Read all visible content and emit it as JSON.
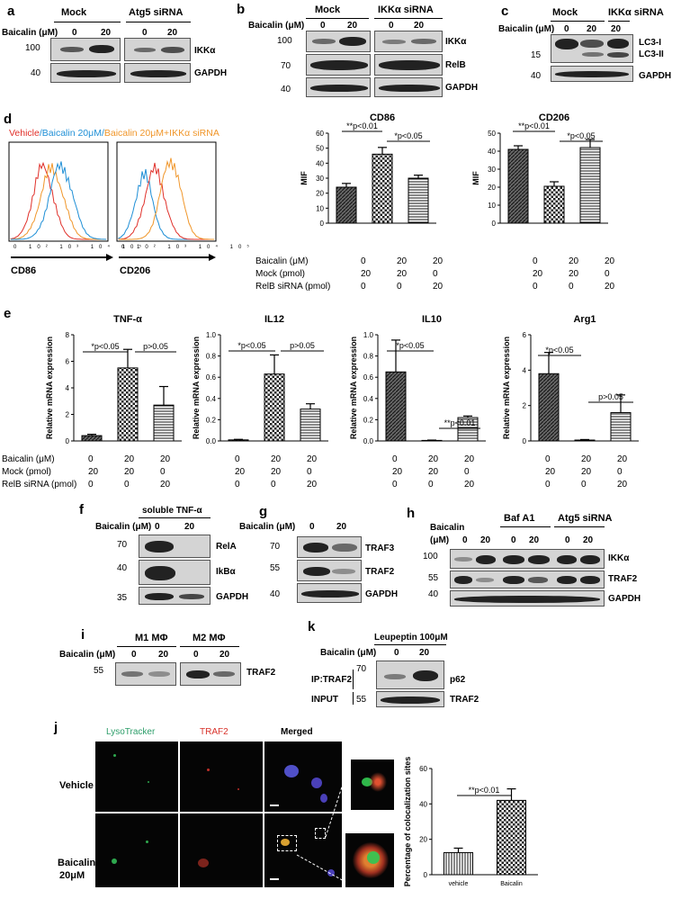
{
  "panels": {
    "a": {
      "label": "a",
      "treat_label": "Baicalin (μM)",
      "groups": [
        "Mock",
        "Atg5 siRNA"
      ],
      "doses": [
        "0",
        "20",
        "0",
        "20"
      ],
      "mw": [
        "100",
        "40"
      ],
      "proteins": [
        "IKKα",
        "GAPDH"
      ]
    },
    "b": {
      "label": "b",
      "treat_label": "Baicalin (μM)",
      "groups": [
        "Mock",
        "IKKα siRNA"
      ],
      "doses": [
        "0",
        "20",
        "0",
        "20"
      ],
      "mw": [
        "100",
        "70",
        "40"
      ],
      "proteins": [
        "IKKα",
        "RelB",
        "GAPDH"
      ]
    },
    "c": {
      "label": "c",
      "treat_label": "Baicalin (μM)",
      "groups": [
        "Mock",
        "IKKα siRNA"
      ],
      "doses": [
        "0",
        "20",
        "20"
      ],
      "mw": [
        "15",
        "40"
      ],
      "proteins": [
        "LC3-I",
        "LC3-II",
        "GAPDH"
      ]
    },
    "d": {
      "label": "d",
      "legend": [
        "Vehicle",
        "/Baicalin 20μM/",
        "Baicalin 20μM+IKKα siRNA"
      ],
      "legend_colors": [
        "#e0302a",
        "#1f8fd6",
        "#f0962a"
      ],
      "flow_xlabels": [
        "CD86",
        "CD206"
      ],
      "ticks": [
        "0",
        "10²",
        "10³",
        "10⁴",
        "10⁵"
      ]
    },
    "e": {
      "label": "e"
    },
    "f": {
      "label": "f",
      "title": "soluble TNF-α",
      "treat_label": "Baicalin (μM)",
      "doses": [
        "0",
        "20"
      ],
      "mw": [
        "70",
        "40",
        "35"
      ],
      "proteins": [
        "RelA",
        "IkBα",
        "GAPDH"
      ]
    },
    "g": {
      "label": "g",
      "treat_label": "Baicalin (μM)",
      "doses": [
        "0",
        "20"
      ],
      "mw": [
        "70",
        "55",
        "40"
      ],
      "proteins": [
        "TRAF3",
        "TRAF2",
        "GAPDH"
      ]
    },
    "h": {
      "label": "h",
      "treat_label_1": "Baicalin",
      "treat_label_2": "(μM)",
      "groups": [
        "Baf A1",
        "Atg5 siRNA"
      ],
      "doses": [
        "0",
        "20",
        "0",
        "20",
        "0",
        "20"
      ],
      "mw": [
        "100",
        "55",
        "40"
      ],
      "proteins": [
        "IKKα",
        "TRAF2",
        "GAPDH"
      ]
    },
    "i": {
      "label": "i",
      "groups": [
        "M1 MΦ",
        "M2 MΦ"
      ],
      "treat_label": "Baicalin (μM)",
      "doses": [
        "0",
        "20",
        "0",
        "20"
      ],
      "mw": [
        "55"
      ],
      "proteins": [
        "TRAF2"
      ]
    },
    "k": {
      "label": "k",
      "title": "Leupeptin 100μM",
      "treat_label": "Baicalin (μM)",
      "doses": [
        "0",
        "20"
      ],
      "mw": [
        "70",
        "55"
      ],
      "rows": [
        "IP:TRAF2",
        "INPUT"
      ],
      "proteins": [
        "p62",
        "TRAF2"
      ]
    },
    "j": {
      "label": "j",
      "channels": [
        "LysoTracker",
        "TRAF2",
        "Merged"
      ],
      "channel_colors": [
        "#2e9e6a",
        "#d8322a",
        "#000000"
      ],
      "rows": [
        "Vehicle",
        "Baicalin",
        "20μM"
      ]
    }
  },
  "treatment_table": {
    "rows": [
      "Baicalin (μM)",
      "Mock (pmol)",
      "RelB siRNA (pmol)"
    ],
    "values": [
      [
        "0",
        "20",
        "20"
      ],
      [
        "20",
        "20",
        "0"
      ],
      [
        "0",
        "0",
        "20"
      ]
    ]
  },
  "chart_data": [
    {
      "type": "bar",
      "title": "CD86",
      "ylabel": "MIF",
      "categories": [
        "0/20/0",
        "20/20/0",
        "20/0/20"
      ],
      "values": [
        24,
        46,
        30
      ],
      "errors": [
        2.5,
        4.5,
        2
      ],
      "ylim": [
        0,
        60
      ],
      "yticks": [
        "0",
        "10",
        "20",
        "30",
        "40",
        "50",
        "60"
      ],
      "annotations": [
        "**p<0.01",
        "*p<0.05"
      ]
    },
    {
      "type": "bar",
      "title": "CD206",
      "ylabel": "MIF",
      "categories": [
        "0/20/0",
        "20/20/0",
        "20/0/20"
      ],
      "values": [
        41,
        20.5,
        42
      ],
      "errors": [
        2,
        2.5,
        4.5
      ],
      "ylim": [
        0,
        50
      ],
      "yticks": [
        "0",
        "10",
        "20",
        "30",
        "40",
        "50"
      ],
      "annotations": [
        "**p<0.01",
        "*p<0.05"
      ]
    },
    {
      "type": "bar",
      "title": "TNF-α",
      "ylabel": "Relative mRNA expression",
      "categories": [
        "0/20/0",
        "20/20/0",
        "20/0/20"
      ],
      "values": [
        0.4,
        5.5,
        2.7
      ],
      "errors": [
        0.1,
        1.4,
        1.4
      ],
      "ylim": [
        0,
        8
      ],
      "yticks": [
        "0",
        "2",
        "4",
        "6",
        "8"
      ],
      "annotations": [
        "*p<0.05",
        "p>0.05"
      ]
    },
    {
      "type": "bar",
      "title": "IL12",
      "ylabel": "Relative mRNA expression",
      "categories": [
        "0/20/0",
        "20/20/0",
        "20/0/20"
      ],
      "values": [
        0.01,
        0.63,
        0.3
      ],
      "errors": [
        0.005,
        0.18,
        0.05
      ],
      "ylim": [
        0,
        1.0
      ],
      "yticks": [
        "0.0",
        "0.2",
        "0.4",
        "0.6",
        "0.8",
        "1.0"
      ],
      "annotations": [
        "*p<0.05",
        "p>0.05"
      ]
    },
    {
      "type": "bar",
      "title": "IL10",
      "ylabel": "Relative mRNA expression",
      "categories": [
        "0/20/0",
        "20/20/0",
        "20/0/20"
      ],
      "values": [
        0.65,
        0.005,
        0.22
      ],
      "errors": [
        0.3,
        0.003,
        0.015
      ],
      "ylim": [
        0,
        1.0
      ],
      "yticks": [
        "0.0",
        "0.2",
        "0.4",
        "0.6",
        "0.8",
        "1.0"
      ],
      "annotations": [
        "*p<0.05",
        "**p<0.01"
      ]
    },
    {
      "type": "bar",
      "title": "Arg1",
      "ylabel": "Relative mRNA expression",
      "categories": [
        "0/20/0",
        "20/20/0",
        "20/0/20"
      ],
      "values": [
        3.8,
        0.05,
        1.6
      ],
      "errors": [
        1.2,
        0.03,
        1.0
      ],
      "ylim": [
        0,
        6
      ],
      "yticks": [
        "0",
        "2",
        "4",
        "6"
      ],
      "annotations": [
        "*p<0.05",
        "p>0.05"
      ]
    },
    {
      "type": "bar",
      "title": "",
      "ylabel": "Percentage of colocalization sites",
      "categories": [
        "vehicle",
        "Baicalin"
      ],
      "values": [
        12.5,
        42
      ],
      "errors": [
        2.5,
        6.5
      ],
      "ylim": [
        0,
        60
      ],
      "yticks": [
        "0",
        "20",
        "40",
        "60"
      ],
      "annotations": [
        "**p<0.01"
      ]
    }
  ]
}
